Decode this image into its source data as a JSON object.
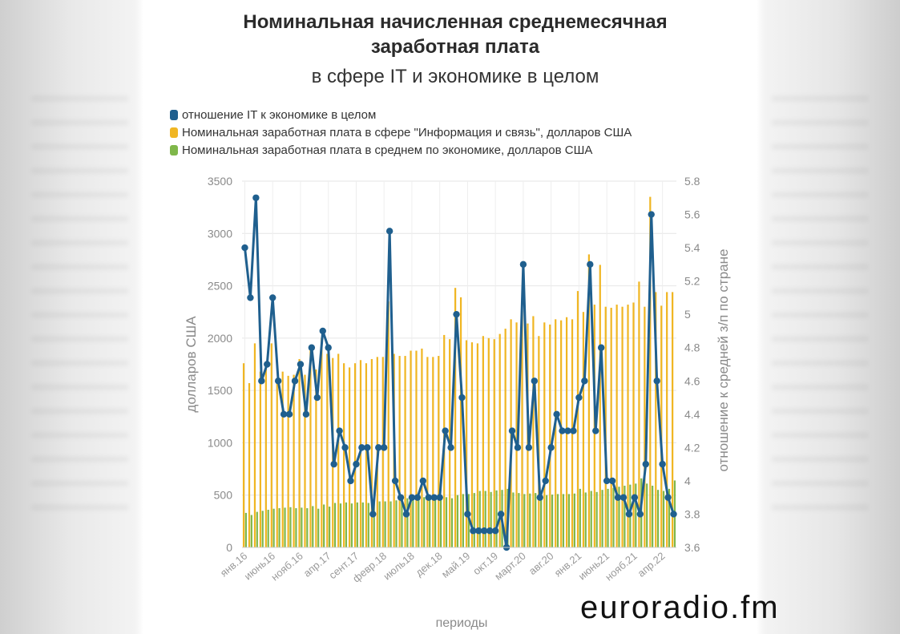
{
  "title_line1": "Номинальная начисленная среднемесячная",
  "title_line2": "заработная плата",
  "subtitle": "в сфере IT и экономике в целом",
  "logo_text": "euroradio.fm",
  "colors": {
    "ratio": "#1f5f8e",
    "it": "#f0b623",
    "economy": "#7fb74a"
  },
  "chart_data": {
    "type": "bar",
    "title": "Номинальная начисленная среднемесячная заработная плата",
    "subtitle": "в сфере IT и экономике в целом",
    "xlabel": "периоды",
    "ylabel": "долларов США",
    "y2label": "отношение к средней з/п по стране",
    "ylim": [
      0,
      3500
    ],
    "y2lim": [
      3.6,
      5.8
    ],
    "yticks": [
      "0",
      "500",
      "1000",
      "1500",
      "2000",
      "2500",
      "3000",
      "3500"
    ],
    "y2ticks": [
      "3.6",
      "3.8",
      "4",
      "4.2",
      "4.4",
      "4.6",
      "4.8",
      "5",
      "5.2",
      "5.4",
      "5.6",
      "5.8"
    ],
    "xtick_labels": [
      "янв.16",
      "июнь16",
      "нояб.16",
      "апр.17",
      "сент.17",
      "февр.18",
      "июль18",
      "дек.18",
      "май.19",
      "окт.19",
      "март.20",
      "авг.20",
      "янв.21",
      "июнь21",
      "нояб.21",
      "апр.22"
    ],
    "xtick_positions": [
      0,
      5,
      10,
      15,
      20,
      25,
      30,
      35,
      40,
      45,
      50,
      55,
      60,
      65,
      70,
      75
    ],
    "grid": true,
    "legend_position": "top-left",
    "series": [
      {
        "name": "отношение IT к экономике в целом",
        "kind": "line",
        "axis": "right",
        "values": [
          5.4,
          5.1,
          5.7,
          4.6,
          4.7,
          5.1,
          4.6,
          4.4,
          4.4,
          4.6,
          4.7,
          4.4,
          4.8,
          4.5,
          4.9,
          4.8,
          4.1,
          4.3,
          4.2,
          4.0,
          4.1,
          4.2,
          4.2,
          3.8,
          4.2,
          4.2,
          5.5,
          4.0,
          3.9,
          3.8,
          3.9,
          3.9,
          4.0,
          3.9,
          3.9,
          3.9,
          4.3,
          4.2,
          5.0,
          4.5,
          3.8,
          3.7,
          3.7,
          3.7,
          3.7,
          3.7,
          3.8,
          3.6,
          4.3,
          4.2,
          5.3,
          4.2,
          4.6,
          3.9,
          4.0,
          4.2,
          4.4,
          4.3,
          4.3,
          4.3,
          4.5,
          4.6,
          5.3,
          4.3,
          4.8,
          4.0,
          4.0,
          3.9,
          3.9,
          3.8,
          3.9,
          3.8,
          4.1,
          5.6,
          4.6,
          4.1,
          3.9,
          3.8
        ]
      },
      {
        "name": "Номинальная заработная плата в сфере \"Информация и связь\", долларов США",
        "kind": "bar",
        "axis": "left",
        "values": [
          1760,
          1570,
          1950,
          1680,
          1720,
          1950,
          1620,
          1680,
          1640,
          1650,
          1800,
          1650,
          1900,
          1700,
          2000,
          1850,
          1810,
          1850,
          1760,
          1720,
          1760,
          1790,
          1760,
          1800,
          1820,
          1820,
          2350,
          1850,
          1830,
          1830,
          1880,
          1880,
          1900,
          1820,
          1820,
          1830,
          2030,
          1990,
          2480,
          2390,
          1980,
          1960,
          1950,
          2020,
          2000,
          1990,
          2040,
          2090,
          2180,
          2150,
          2260,
          2140,
          2210,
          2020,
          2150,
          2130,
          2180,
          2170,
          2200,
          2180,
          2450,
          2250,
          2800,
          2320,
          2700,
          2300,
          2290,
          2320,
          2300,
          2320,
          2340,
          2540,
          2300,
          3350,
          2440,
          2310,
          2440,
          2440
        ]
      },
      {
        "name": "Номинальная заработная плата в среднем по экономике, долларов США",
        "kind": "bar",
        "axis": "left",
        "values": [
          330,
          310,
          340,
          350,
          360,
          370,
          375,
          380,
          385,
          375,
          380,
          375,
          395,
          370,
          410,
          390,
          425,
          420,
          430,
          420,
          430,
          430,
          425,
          440,
          440,
          440,
          440,
          450,
          465,
          470,
          470,
          470,
          480,
          470,
          460,
          460,
          480,
          470,
          500,
          510,
          510,
          520,
          540,
          540,
          530,
          545,
          550,
          560,
          525,
          520,
          510,
          515,
          520,
          510,
          500,
          505,
          510,
          510,
          510,
          515,
          560,
          525,
          540,
          530,
          550,
          560,
          570,
          580,
          590,
          600,
          610,
          660,
          610,
          590,
          550,
          540,
          560,
          640
        ]
      }
    ]
  }
}
